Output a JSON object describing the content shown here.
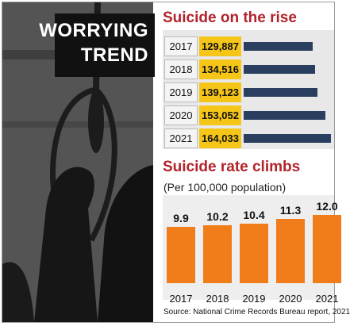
{
  "badge": {
    "line1": "WORRYING",
    "line2": "TREND"
  },
  "colors": {
    "title_red": "#b2232b",
    "year_bar": "#2a3f5f",
    "value_cell": "#f5c518",
    "rate_bar": "#f07d1a"
  },
  "chart_data": [
    {
      "type": "bar",
      "orientation": "horizontal",
      "title": "Suicide on the rise",
      "categories": [
        "2017",
        "2018",
        "2019",
        "2020",
        "2021"
      ],
      "values": [
        129887,
        134516,
        139123,
        153052,
        164033
      ],
      "value_labels": [
        "129,887",
        "134,516",
        "139,123",
        "153,052",
        "164,033"
      ],
      "xlim": [
        0,
        164033
      ]
    },
    {
      "type": "bar",
      "orientation": "vertical",
      "title": "Suicide rate climbs",
      "subtitle": "(Per 100,000 population)",
      "categories": [
        "2017",
        "2018",
        "2019",
        "2020",
        "2021"
      ],
      "values": [
        9.9,
        10.2,
        10.4,
        11.3,
        12.0
      ],
      "value_labels": [
        "9.9",
        "10.2",
        "10.4",
        "11.3",
        "12.0"
      ],
      "ylim": [
        0,
        12.0
      ]
    }
  ],
  "source": "Source: National Crime Records Bureau report, 2021"
}
